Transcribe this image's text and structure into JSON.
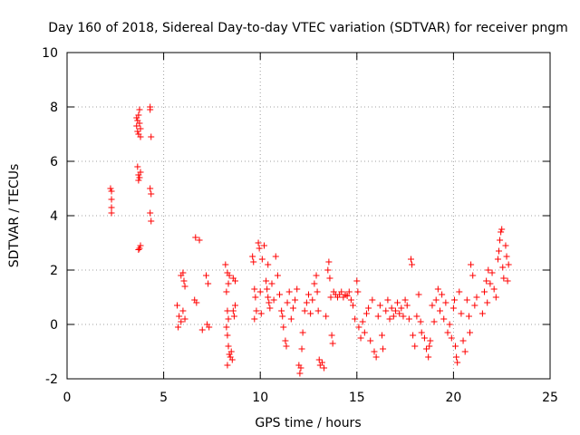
{
  "chart_data": {
    "type": "scatter",
    "title": "Day 160 of 2018, Sidereal Day-to-day VTEC variation (SDTVAR) for receiver pngm",
    "xlabel": "GPS time / hours",
    "ylabel": "SDTVAR / TECUs",
    "xlim": [
      0,
      25
    ],
    "ylim": [
      -2,
      10
    ],
    "xticks": [
      0,
      5,
      10,
      15,
      20,
      25
    ],
    "yticks": [
      -2,
      0,
      2,
      4,
      6,
      8,
      10
    ],
    "grid": true,
    "marker": "+",
    "color": "#ff0000",
    "series": [
      {
        "name": "SDTVAR",
        "points": [
          [
            2.3,
            4.9
          ],
          [
            2.3,
            4.6
          ],
          [
            2.3,
            4.3
          ],
          [
            2.3,
            4.1
          ],
          [
            2.25,
            5.0
          ],
          [
            3.6,
            7.3
          ],
          [
            3.65,
            7.5
          ],
          [
            3.7,
            7.7
          ],
          [
            3.75,
            7.9
          ],
          [
            3.8,
            7.2
          ],
          [
            3.7,
            7.0
          ],
          [
            3.6,
            7.6
          ],
          [
            3.8,
            6.9
          ],
          [
            3.75,
            7.4
          ],
          [
            3.65,
            7.1
          ],
          [
            3.7,
            5.5
          ],
          [
            3.75,
            5.4
          ],
          [
            3.8,
            5.6
          ],
          [
            3.65,
            5.8
          ],
          [
            3.7,
            5.3
          ],
          [
            3.8,
            2.9
          ],
          [
            3.75,
            2.8
          ],
          [
            3.7,
            2.75
          ],
          [
            4.3,
            8.0
          ],
          [
            4.3,
            7.9
          ],
          [
            4.35,
            6.9
          ],
          [
            4.3,
            5.0
          ],
          [
            4.35,
            4.8
          ],
          [
            4.3,
            4.1
          ],
          [
            4.35,
            3.8
          ],
          [
            5.7,
            0.7
          ],
          [
            5.8,
            0.3
          ],
          [
            5.9,
            0.1
          ],
          [
            5.75,
            -0.1
          ],
          [
            6.0,
            1.9
          ],
          [
            6.05,
            1.6
          ],
          [
            6.1,
            1.4
          ],
          [
            6.0,
            0.5
          ],
          [
            6.1,
            0.2
          ],
          [
            5.9,
            1.8
          ],
          [
            6.6,
            0.9
          ],
          [
            6.7,
            0.8
          ],
          [
            6.65,
            3.2
          ],
          [
            6.85,
            3.1
          ],
          [
            7.0,
            -0.2
          ],
          [
            7.2,
            1.8
          ],
          [
            7.3,
            1.5
          ],
          [
            7.25,
            0.0
          ],
          [
            7.35,
            -0.1
          ],
          [
            8.2,
            2.2
          ],
          [
            8.3,
            1.9
          ],
          [
            8.35,
            1.5
          ],
          [
            8.25,
            1.2
          ],
          [
            8.3,
            0.5
          ],
          [
            8.35,
            0.2
          ],
          [
            8.25,
            -0.1
          ],
          [
            8.3,
            -0.4
          ],
          [
            8.35,
            -0.8
          ],
          [
            8.4,
            -1.1
          ],
          [
            8.45,
            -1.2
          ],
          [
            8.3,
            -1.5
          ],
          [
            8.5,
            -1.0
          ],
          [
            8.55,
            -1.3
          ],
          [
            8.6,
            0.5
          ],
          [
            8.65,
            0.3
          ],
          [
            8.7,
            0.7
          ],
          [
            8.6,
            1.7
          ],
          [
            8.7,
            1.6
          ],
          [
            8.4,
            1.8
          ],
          [
            9.6,
            2.5
          ],
          [
            9.65,
            2.3
          ],
          [
            9.7,
            1.3
          ],
          [
            9.75,
            1.0
          ],
          [
            9.8,
            0.5
          ],
          [
            9.7,
            0.2
          ],
          [
            9.9,
            3.0
          ],
          [
            9.95,
            2.8
          ],
          [
            10.0,
            1.2
          ],
          [
            10.05,
            0.4
          ],
          [
            10.1,
            2.4
          ],
          [
            10.2,
            2.9
          ],
          [
            10.3,
            1.6
          ],
          [
            10.35,
            1.3
          ],
          [
            10.4,
            1.0
          ],
          [
            10.45,
            0.8
          ],
          [
            10.5,
            0.6
          ],
          [
            10.4,
            2.2
          ],
          [
            10.6,
            1.5
          ],
          [
            10.7,
            0.9
          ],
          [
            10.8,
            2.5
          ],
          [
            10.9,
            1.8
          ],
          [
            11.0,
            1.1
          ],
          [
            11.1,
            0.5
          ],
          [
            11.15,
            0.3
          ],
          [
            11.2,
            -0.1
          ],
          [
            11.3,
            -0.6
          ],
          [
            11.35,
            -0.8
          ],
          [
            11.4,
            0.8
          ],
          [
            11.5,
            1.2
          ],
          [
            11.6,
            0.2
          ],
          [
            11.7,
            0.6
          ],
          [
            11.8,
            0.9
          ],
          [
            11.9,
            1.3
          ],
          [
            12.0,
            -1.5
          ],
          [
            12.05,
            -1.8
          ],
          [
            12.1,
            -1.6
          ],
          [
            12.15,
            -0.9
          ],
          [
            12.2,
            -0.3
          ],
          [
            12.3,
            0.5
          ],
          [
            12.4,
            0.8
          ],
          [
            12.5,
            1.1
          ],
          [
            12.6,
            0.4
          ],
          [
            12.7,
            0.9
          ],
          [
            12.8,
            1.5
          ],
          [
            12.9,
            1.8
          ],
          [
            12.95,
            1.2
          ],
          [
            13.0,
            0.5
          ],
          [
            13.05,
            -1.3
          ],
          [
            13.1,
            -1.5
          ],
          [
            13.2,
            -1.4
          ],
          [
            13.3,
            -1.6
          ],
          [
            13.4,
            0.3
          ],
          [
            13.5,
            2.0
          ],
          [
            13.55,
            2.3
          ],
          [
            13.6,
            1.7
          ],
          [
            13.65,
            1.0
          ],
          [
            13.7,
            -0.4
          ],
          [
            13.75,
            -0.7
          ],
          [
            13.8,
            1.2
          ],
          [
            13.9,
            1.1
          ],
          [
            14.0,
            1.0
          ],
          [
            14.1,
            1.1
          ],
          [
            14.2,
            1.2
          ],
          [
            14.3,
            1.0
          ],
          [
            14.4,
            1.1
          ],
          [
            14.5,
            1.05
          ],
          [
            14.6,
            1.2
          ],
          [
            14.7,
            0.9
          ],
          [
            14.8,
            0.7
          ],
          [
            14.9,
            0.2
          ],
          [
            15.0,
            1.6
          ],
          [
            15.05,
            1.2
          ],
          [
            15.1,
            -0.1
          ],
          [
            15.2,
            -0.5
          ],
          [
            15.3,
            0.1
          ],
          [
            15.4,
            -0.3
          ],
          [
            15.5,
            0.4
          ],
          [
            15.6,
            0.6
          ],
          [
            15.7,
            -0.6
          ],
          [
            15.8,
            0.9
          ],
          [
            15.9,
            -1.0
          ],
          [
            16.0,
            -1.2
          ],
          [
            16.1,
            0.3
          ],
          [
            16.2,
            0.7
          ],
          [
            16.3,
            -0.4
          ],
          [
            16.35,
            -0.9
          ],
          [
            16.5,
            0.5
          ],
          [
            16.6,
            0.9
          ],
          [
            16.7,
            0.2
          ],
          [
            16.8,
            0.6
          ],
          [
            16.9,
            0.3
          ],
          [
            17.0,
            0.5
          ],
          [
            17.1,
            0.8
          ],
          [
            17.2,
            0.4
          ],
          [
            17.3,
            0.6
          ],
          [
            17.4,
            0.3
          ],
          [
            17.5,
            0.9
          ],
          [
            17.6,
            0.7
          ],
          [
            17.7,
            0.2
          ],
          [
            17.8,
            2.4
          ],
          [
            17.85,
            2.2
          ],
          [
            17.9,
            -0.4
          ],
          [
            18.0,
            -0.8
          ],
          [
            18.1,
            0.3
          ],
          [
            18.2,
            1.1
          ],
          [
            18.3,
            0.1
          ],
          [
            18.35,
            -0.3
          ],
          [
            18.5,
            -0.5
          ],
          [
            18.6,
            -0.9
          ],
          [
            18.7,
            -1.2
          ],
          [
            18.75,
            -0.8
          ],
          [
            18.8,
            -0.6
          ],
          [
            18.9,
            0.7
          ],
          [
            19.0,
            0.1
          ],
          [
            19.1,
            0.9
          ],
          [
            19.2,
            1.3
          ],
          [
            19.3,
            0.5
          ],
          [
            19.4,
            1.1
          ],
          [
            19.5,
            0.2
          ],
          [
            19.6,
            0.8
          ],
          [
            19.7,
            -0.3
          ],
          [
            19.8,
            0.0
          ],
          [
            19.9,
            -0.5
          ],
          [
            20.0,
            0.6
          ],
          [
            20.05,
            0.9
          ],
          [
            20.1,
            -0.8
          ],
          [
            20.15,
            -1.2
          ],
          [
            20.2,
            -1.4
          ],
          [
            20.3,
            1.2
          ],
          [
            20.4,
            0.4
          ],
          [
            20.5,
            -0.6
          ],
          [
            20.6,
            -1.0
          ],
          [
            20.7,
            0.9
          ],
          [
            20.8,
            0.3
          ],
          [
            20.85,
            -0.3
          ],
          [
            20.9,
            2.2
          ],
          [
            21.0,
            1.8
          ],
          [
            21.1,
            0.7
          ],
          [
            21.2,
            1.0
          ],
          [
            21.5,
            0.4
          ],
          [
            21.6,
            1.2
          ],
          [
            21.7,
            1.6
          ],
          [
            21.75,
            0.8
          ],
          [
            21.8,
            2.0
          ],
          [
            21.9,
            1.5
          ],
          [
            22.0,
            1.9
          ],
          [
            22.1,
            1.3
          ],
          [
            22.2,
            1.0
          ],
          [
            22.3,
            2.4
          ],
          [
            22.35,
            2.7
          ],
          [
            22.4,
            3.1
          ],
          [
            22.45,
            3.4
          ],
          [
            22.5,
            3.5
          ],
          [
            22.55,
            2.1
          ],
          [
            22.6,
            1.7
          ],
          [
            22.7,
            2.9
          ],
          [
            22.75,
            2.5
          ],
          [
            22.8,
            1.6
          ],
          [
            22.85,
            2.2
          ]
        ]
      }
    ]
  }
}
